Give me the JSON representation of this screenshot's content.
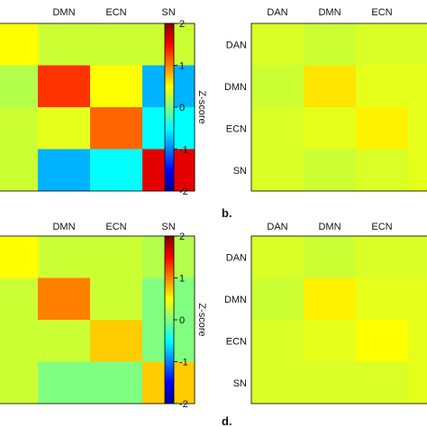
{
  "colorscale": {
    "name": "jet",
    "min": -2,
    "max": 2,
    "ticks": [
      "2",
      "1",
      "0",
      "-1",
      "-2"
    ],
    "label": "Z-score"
  },
  "panel_letters": [
    "b.",
    "d."
  ],
  "chart_data": [
    {
      "type": "heatmap",
      "panel": "top-left",
      "columns": [
        "DMN",
        "ECN",
        "SN"
      ],
      "rows": 4,
      "partial_leading_column": true,
      "values": [
        [
          0.5,
          0.3,
          0.3,
          0.3
        ],
        [
          0.2,
          1.3,
          0.5,
          -0.8
        ],
        [
          0.3,
          0.4,
          1.1,
          -0.5
        ],
        [
          0.3,
          -0.8,
          -0.5,
          1.6
        ]
      ]
    },
    {
      "type": "heatmap",
      "panel": "top-right",
      "columns": [
        "DAN",
        "DMN",
        "ECN"
      ],
      "rows": [
        "DAN",
        "DMN",
        "ECN",
        "SN"
      ],
      "partial_trailing_column": true,
      "values": [
        [
          0.35,
          0.3,
          0.35,
          0.35
        ],
        [
          0.3,
          0.6,
          0.4,
          0.4
        ],
        [
          0.35,
          0.4,
          0.55,
          0.4
        ],
        [
          0.35,
          0.3,
          0.35,
          0.4
        ]
      ]
    },
    {
      "type": "heatmap",
      "panel": "bottom-left",
      "columns": [
        "DMN",
        "ECN",
        "SN"
      ],
      "rows": 4,
      "partial_leading_column": true,
      "values": [
        [
          0.5,
          0.3,
          0.3,
          0.2
        ],
        [
          0.3,
          1.0,
          0.3,
          0.0
        ],
        [
          0.3,
          0.3,
          0.7,
          0.0
        ],
        [
          0.3,
          0.0,
          0.0,
          0.7
        ]
      ]
    },
    {
      "type": "heatmap",
      "panel": "bottom-right",
      "columns": [
        "DAN",
        "DMN",
        "ECN"
      ],
      "rows": [
        "DAN",
        "DMN",
        "ECN",
        "SN"
      ],
      "partial_trailing_column": true,
      "values": [
        [
          0.35,
          0.3,
          0.35,
          0.35
        ],
        [
          0.3,
          0.55,
          0.4,
          0.4
        ],
        [
          0.35,
          0.4,
          0.5,
          0.4
        ],
        [
          0.35,
          0.35,
          0.35,
          0.4
        ]
      ]
    }
  ]
}
